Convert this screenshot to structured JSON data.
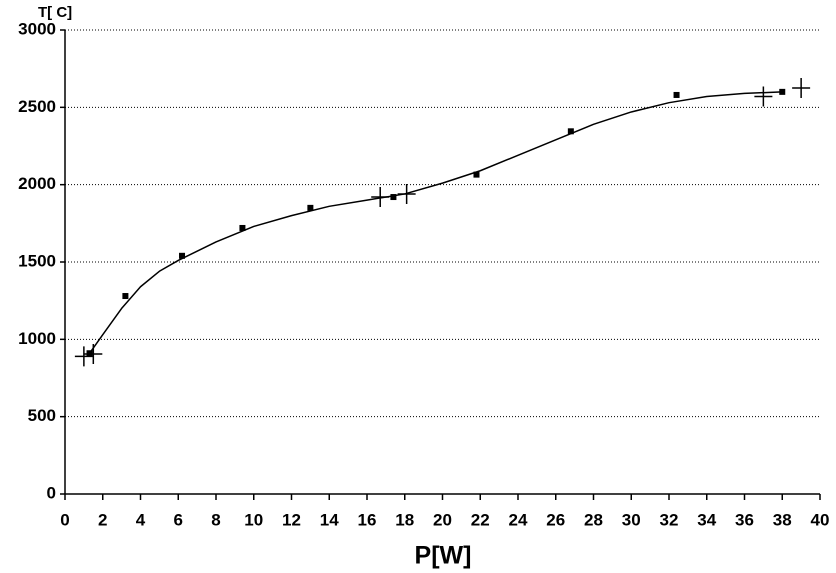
{
  "chart_data": {
    "type": "scatter",
    "y_label": "T[ C]",
    "x_label": "P[W]",
    "xlim": [
      0,
      40
    ],
    "xticks": [
      0,
      2,
      4,
      6,
      8,
      10,
      12,
      14,
      16,
      18,
      20,
      22,
      24,
      26,
      28,
      30,
      32,
      34,
      36,
      38,
      40
    ],
    "ylim": [
      0,
      3000
    ],
    "yticks": [
      0,
      500,
      1000,
      1500,
      2000,
      2500,
      3000
    ],
    "grid": "horizontal-dotted",
    "series": [
      {
        "marker": "square",
        "color": "#000000",
        "x": [
          1.3,
          3.2,
          6.2,
          9.4,
          13,
          17.4,
          21.8,
          26.8,
          32.4,
          38
        ],
        "values": [
          910,
          1280,
          1540,
          1720,
          1850,
          1920,
          2065,
          2345,
          2580,
          2600
        ]
      },
      {
        "marker": "plus",
        "color": "#000000",
        "x": [
          1.0,
          1.5,
          16.7,
          18.1,
          37,
          39
        ],
        "values": [
          890,
          905,
          1920,
          1940,
          2570,
          2625
        ]
      },
      {
        "marker": "line",
        "color": "#000000",
        "x": [
          1.3,
          2,
          3,
          4,
          5,
          6,
          8,
          10,
          12,
          14,
          16,
          18,
          20,
          22,
          24,
          26,
          28,
          30,
          32,
          34,
          36,
          38
        ],
        "values": [
          910,
          1030,
          1200,
          1340,
          1440,
          1510,
          1630,
          1730,
          1800,
          1860,
          1900,
          1940,
          2010,
          2090,
          2190,
          2290,
          2390,
          2470,
          2530,
          2570,
          2590,
          2600
        ]
      }
    ]
  }
}
